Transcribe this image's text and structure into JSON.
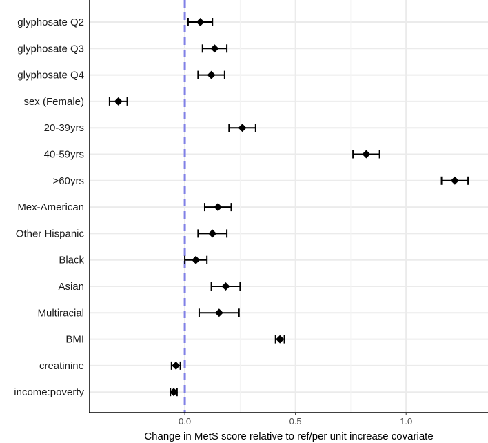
{
  "chart_data": {
    "type": "forest",
    "title": "",
    "xlabel": "Change in MetS score relative to ref/per unit increase covariate",
    "ylabel": "",
    "xlim": [
      -0.43,
      1.37
    ],
    "xticks": [
      0.0,
      0.5,
      1.0
    ],
    "xtick_labels": [
      "0.0",
      "0.5",
      "1.0"
    ],
    "reference_line": 0,
    "grid": true,
    "colors": {
      "reference_line": "#8080e6",
      "point": "#000000",
      "grid": "#ebebeb",
      "axis": "#000000"
    },
    "series": [
      {
        "label": "glyphosate Q2",
        "estimate": 0.07,
        "lower": 0.015,
        "upper": 0.125
      },
      {
        "label": "glyphosate Q3",
        "estimate": 0.135,
        "lower": 0.08,
        "upper": 0.19
      },
      {
        "label": "glyphosate Q4",
        "estimate": 0.12,
        "lower": 0.06,
        "upper": 0.18
      },
      {
        "label": "sex (Female)",
        "estimate": -0.3,
        "lower": -0.34,
        "upper": -0.26
      },
      {
        "label": "20-39yrs",
        "estimate": 0.26,
        "lower": 0.2,
        "upper": 0.32
      },
      {
        "label": "40-59yrs",
        "estimate": 0.82,
        "lower": 0.76,
        "upper": 0.88
      },
      {
        "label": ">60yrs",
        "estimate": 1.22,
        "lower": 1.16,
        "upper": 1.28
      },
      {
        "label": "Mex-American",
        "estimate": 0.15,
        "lower": 0.09,
        "upper": 0.21
      },
      {
        "label": "Other Hispanic",
        "estimate": 0.125,
        "lower": 0.06,
        "upper": 0.19
      },
      {
        "label": "Black",
        "estimate": 0.05,
        "lower": 0.0,
        "upper": 0.1
      },
      {
        "label": "Asian",
        "estimate": 0.185,
        "lower": 0.12,
        "upper": 0.25
      },
      {
        "label": "Multiracial",
        "estimate": 0.155,
        "lower": 0.065,
        "upper": 0.245
      },
      {
        "label": "BMI",
        "estimate": 0.43,
        "lower": 0.41,
        "upper": 0.45
      },
      {
        "label": "creatinine",
        "estimate": -0.04,
        "lower": -0.06,
        "upper": -0.02
      },
      {
        "label": "income:poverty",
        "estimate": -0.05,
        "lower": -0.065,
        "upper": -0.035
      }
    ]
  }
}
